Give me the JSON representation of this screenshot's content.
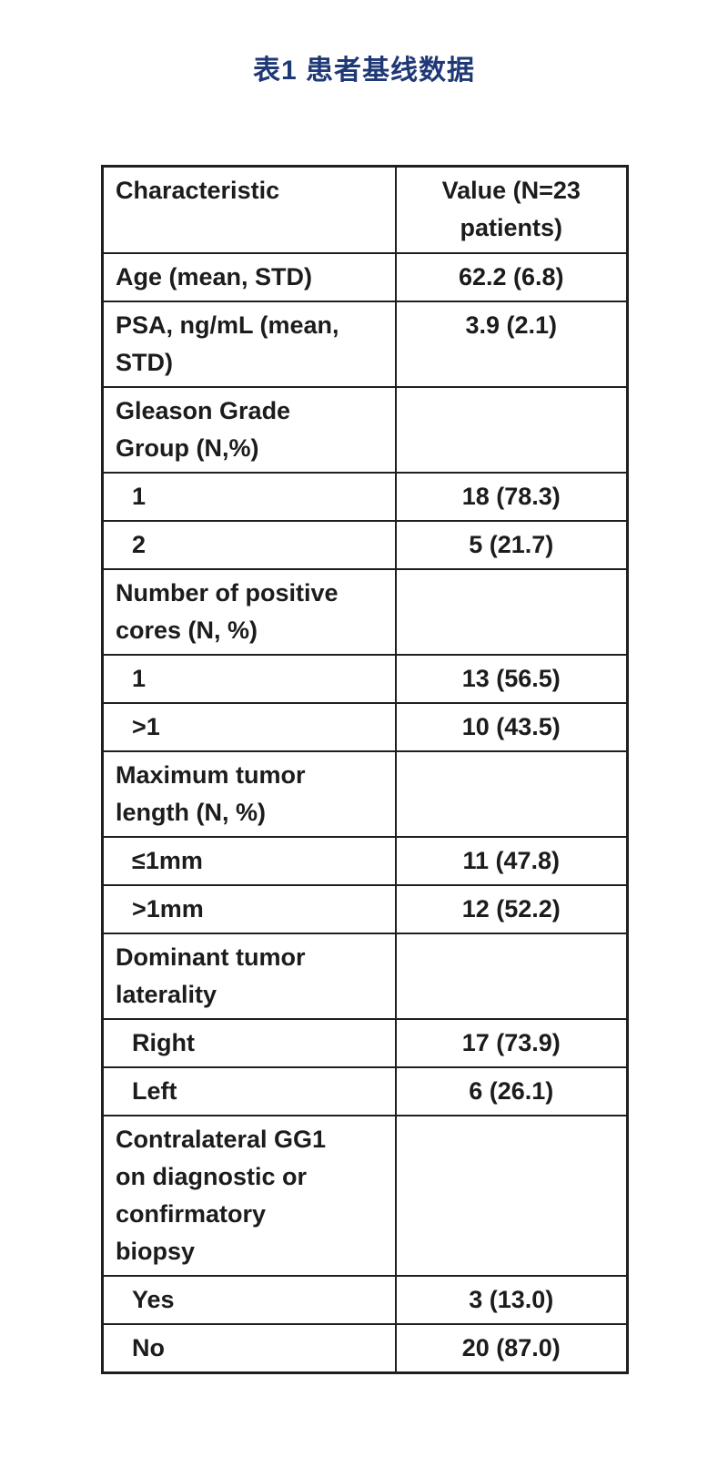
{
  "page": {
    "caption": "表1 患者基线数据"
  },
  "colors": {
    "caption_navy": "#1f3876",
    "table_text": "#1c1c1e",
    "table_border": "#1f1f1f",
    "background": "#ffffff"
  },
  "table": {
    "columns": [
      {
        "label": "Characteristic"
      },
      {
        "label": "Value (N=23 patients)"
      }
    ],
    "rows": [
      {
        "label": "Age (mean, STD)",
        "value": "62.2 (6.8)",
        "indent": false
      },
      {
        "label": "PSA, ng/mL (mean, STD)",
        "value": "3.9 (2.1)",
        "indent": false
      },
      {
        "label": "Gleason Grade Group (N,%)",
        "value": "",
        "indent": false
      },
      {
        "label": "1",
        "value": "18 (78.3)",
        "indent": true
      },
      {
        "label": "2",
        "value": "5 (21.7)",
        "indent": true
      },
      {
        "label": "Number of positive cores (N, %)",
        "value": "",
        "indent": false
      },
      {
        "label": "1",
        "value": "13 (56.5)",
        "indent": true
      },
      {
        "label": ">1",
        "value": "10 (43.5)",
        "indent": true
      },
      {
        "label": "Maximum tumor length (N, %)",
        "value": "",
        "indent": false
      },
      {
        "label": "≤1mm",
        "value": "11 (47.8)",
        "indent": true
      },
      {
        "label": ">1mm",
        "value": "12 (52.2)",
        "indent": true
      },
      {
        "label": "Dominant tumor laterality",
        "value": "",
        "indent": false
      },
      {
        "label": "Right",
        "value": "17 (73.9)",
        "indent": true
      },
      {
        "label": "Left",
        "value": "6 (26.1)",
        "indent": true
      },
      {
        "label": "Contralateral GG1 on diagnostic or confirmatory biopsy",
        "value": "",
        "indent": false
      },
      {
        "label": "Yes",
        "value": "3 (13.0)",
        "indent": true
      },
      {
        "label": "No",
        "value": "20 (87.0)",
        "indent": true
      }
    ]
  }
}
